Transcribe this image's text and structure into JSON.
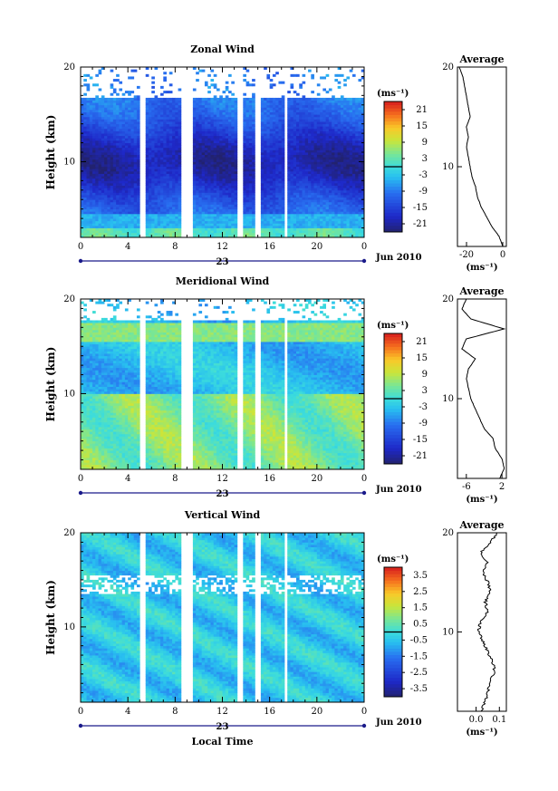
{
  "figure": {
    "date_label": "Jun 2010",
    "day_label": "23",
    "xlabel_bottom": "Local Time",
    "ylabel": "Height (km)",
    "average_title": "Average",
    "unit_label": "(ms⁻¹)"
  },
  "chart_data": [
    {
      "type": "heatmap",
      "title": "Zonal Wind",
      "ylabel": "Height (km)",
      "xlim": [
        0,
        24
      ],
      "ylim": [
        2,
        20
      ],
      "xticks": [
        "0",
        "4",
        "8",
        "12",
        "16",
        "20",
        "0"
      ],
      "yticks": [
        {
          "v": 10,
          "t": "10"
        },
        {
          "v": 20,
          "t": "20"
        }
      ],
      "colorbar": {
        "unit": "(ms⁻¹)",
        "ticks": [
          "21",
          "15",
          "9",
          "3",
          "-3",
          "-9",
          "-15",
          "-21"
        ],
        "range": [
          -24,
          24
        ]
      },
      "data_gaps_hours": [
        [
          4.9,
          5.4
        ],
        [
          8.5,
          9.4
        ],
        [
          13.2,
          13.7
        ],
        [
          14.8,
          15.2
        ],
        [
          17.2,
          17.5
        ]
      ],
      "profile": {
        "xlim": [
          -25,
          2
        ],
        "xticks": [
          {
            "v": -20,
            "t": "-20"
          },
          {
            "v": 0,
            "t": "0"
          }
        ],
        "heights": [
          2,
          3,
          4,
          5,
          6,
          7,
          8,
          9,
          10,
          11,
          12,
          13,
          14,
          15,
          16,
          17,
          18,
          19,
          20
        ],
        "values": [
          0,
          -2,
          -6,
          -9,
          -12,
          -14,
          -15,
          -17,
          -18,
          -19,
          -20,
          -19,
          -20,
          -18,
          -19,
          -20,
          -21,
          -22,
          -24
        ]
      }
    },
    {
      "type": "heatmap",
      "title": "Meridional Wind",
      "ylabel": "Height (km)",
      "xlim": [
        0,
        24
      ],
      "ylim": [
        2,
        20
      ],
      "xticks": [
        "0",
        "4",
        "8",
        "12",
        "16",
        "20",
        "0"
      ],
      "yticks": [
        {
          "v": 10,
          "t": "10"
        },
        {
          "v": 20,
          "t": "20"
        }
      ],
      "colorbar": {
        "unit": "(ms⁻¹)",
        "ticks": [
          "21",
          "15",
          "9",
          "3",
          "-3",
          "-9",
          "-15",
          "-21"
        ],
        "range": [
          -24,
          24
        ]
      },
      "data_gaps_hours": [
        [
          4.9,
          5.4
        ],
        [
          8.5,
          9.4
        ],
        [
          13.2,
          13.7
        ],
        [
          14.8,
          15.2
        ],
        [
          17.2,
          17.5
        ]
      ],
      "profile": {
        "xlim": [
          -8,
          3
        ],
        "xticks": [
          {
            "v": -6,
            "t": "-6"
          },
          {
            "v": 2,
            "t": "2"
          }
        ],
        "heights": [
          2,
          3,
          4,
          5,
          6,
          7,
          8,
          9,
          10,
          11,
          12,
          13,
          14,
          15,
          16,
          17,
          18,
          19,
          20
        ],
        "values": [
          1.5,
          2.5,
          2,
          0.5,
          0,
          -2,
          -3,
          -4,
          -5,
          -5.5,
          -6,
          -5.5,
          -4,
          -7,
          -6,
          2.5,
          -5,
          -7,
          -6
        ]
      }
    },
    {
      "type": "heatmap",
      "title": "Vertical Wind",
      "ylabel": "Height (km)",
      "xlabel": "Local Time",
      "xlim": [
        0,
        24
      ],
      "ylim": [
        2,
        20
      ],
      "xticks": [
        "0",
        "4",
        "8",
        "12",
        "16",
        "20",
        "0"
      ],
      "yticks": [
        {
          "v": 10,
          "t": "10"
        },
        {
          "v": 20,
          "t": "20"
        }
      ],
      "colorbar": {
        "unit": "(ms⁻¹)",
        "ticks": [
          "3.5",
          "2.5",
          "1.5",
          "0.5",
          "-0.5",
          "-1.5",
          "-2.5",
          "-3.5"
        ],
        "range": [
          -4,
          4
        ]
      },
      "data_gaps_hours": [
        [
          4.9,
          5.4
        ],
        [
          8.5,
          9.4
        ],
        [
          13.2,
          13.7
        ],
        [
          14.8,
          15.2
        ],
        [
          17.2,
          17.5
        ]
      ],
      "profile": {
        "xlim": [
          -0.08,
          0.13
        ],
        "xticks": [
          {
            "v": 0,
            "t": "0.0"
          },
          {
            "v": 0.1,
            "t": "0.1"
          }
        ],
        "heights": [
          2,
          3,
          4,
          5,
          6,
          7,
          8,
          9,
          10,
          11,
          12,
          13,
          14,
          15,
          16,
          17,
          18,
          19,
          20
        ],
        "values": [
          0.02,
          0.04,
          0.05,
          0.06,
          0.08,
          0.07,
          0.05,
          0.03,
          0.01,
          0.02,
          0.05,
          0.04,
          0.06,
          0.05,
          0.03,
          0.05,
          0.02,
          0.06,
          0.09
        ]
      }
    }
  ]
}
